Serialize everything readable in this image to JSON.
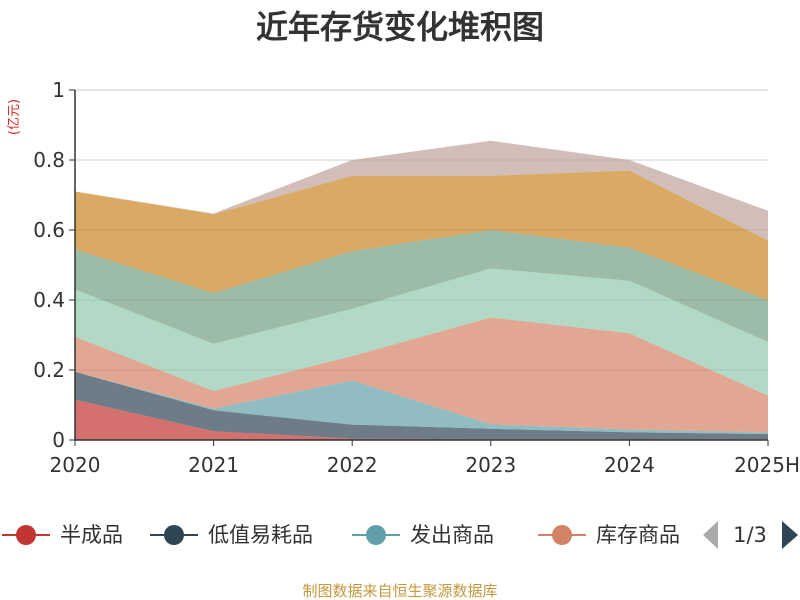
{
  "chart_data": {
    "type": "area",
    "stacked": true,
    "title": "近年存货变化堆积图",
    "unit": "(亿元)",
    "x": [
      "2020",
      "2021",
      "2022",
      "2023",
      "2024",
      "2025H"
    ],
    "ylim": [
      0,
      1
    ],
    "yticks": [
      0,
      0.2,
      0.4,
      0.6,
      0.8,
      1
    ],
    "ytick_labels": [
      "0",
      "0.2",
      "0.4",
      "0.6",
      "0.8",
      "1"
    ],
    "grid": true,
    "series": [
      {
        "name": "半成品",
        "color": "#c23531",
        "values": [
          0.115,
          0.025,
          0.004,
          0.002,
          0.002,
          0.002
        ]
      },
      {
        "name": "低值易耗品",
        "color": "#2f4554",
        "values": [
          0.08,
          0.06,
          0.04,
          0.03,
          0.02,
          0.015
        ]
      },
      {
        "name": "发出商品",
        "color": "#61a0a8",
        "values": [
          0.0,
          0.005,
          0.126,
          0.013,
          0.008,
          0.005
        ]
      },
      {
        "name": "库存商品",
        "color": "#d48265",
        "values": [
          0.1,
          0.05,
          0.07,
          0.305,
          0.275,
          0.105
        ]
      },
      {
        "name": "",
        "color": "#91c7ae",
        "values": [
          0.135,
          0.135,
          0.135,
          0.14,
          0.15,
          0.153
        ]
      },
      {
        "name": "",
        "color": "#749f83",
        "values": [
          0.115,
          0.145,
          0.165,
          0.11,
          0.095,
          0.12
        ]
      },
      {
        "name": "",
        "color": "#ca8622",
        "values": [
          0.165,
          0.225,
          0.215,
          0.155,
          0.22,
          0.17
        ]
      },
      {
        "name": "",
        "color": "#bda29a",
        "values": [
          0.0,
          0.002,
          0.045,
          0.1,
          0.03,
          0.085
        ]
      }
    ],
    "legend": {
      "visible_items": [
        "半成品",
        "低值易耗品",
        "发出商品",
        "库存商品"
      ],
      "page": "1/3",
      "placement": "bottom"
    }
  },
  "source": "制图数据来自恒生聚源数据库"
}
